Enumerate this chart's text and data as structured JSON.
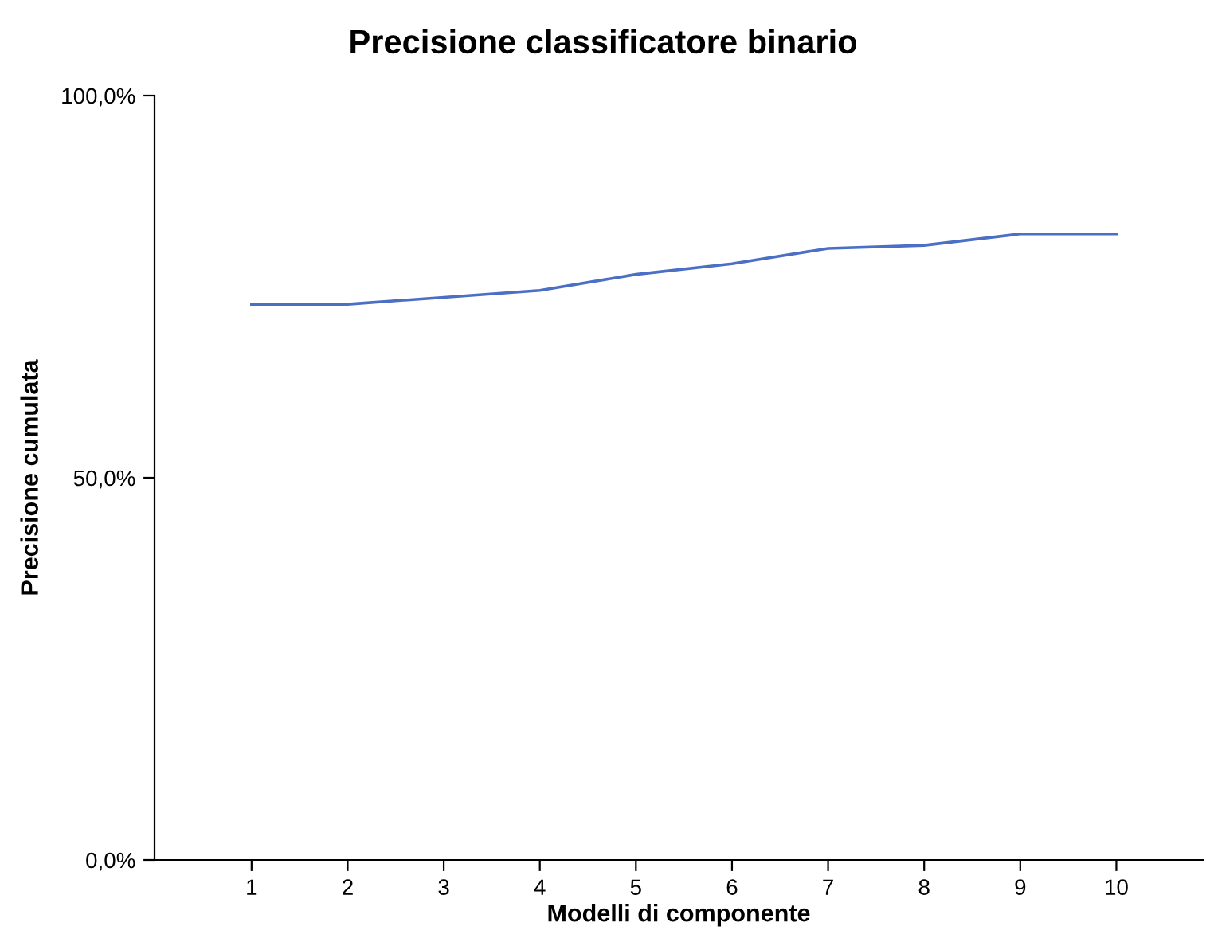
{
  "chart_data": {
    "type": "line",
    "title": "Precisione classificatore binario",
    "xlabel": "Modelli di componente",
    "ylabel": "Precisione cumulata",
    "categories": [
      "1",
      "2",
      "3",
      "4",
      "5",
      "6",
      "7",
      "8",
      "9",
      "10"
    ],
    "series": [
      {
        "color": "#4a6fc4",
        "values": [
          72.7,
          72.7,
          73.6,
          74.5,
          76.6,
          78.0,
          80.0,
          80.4,
          81.9,
          81.9
        ]
      }
    ],
    "ylim": [
      0,
      100
    ],
    "yticks": [
      {
        "value": 0,
        "label": "0,0%"
      },
      {
        "value": 50,
        "label": "50,0%"
      },
      {
        "value": 100,
        "label": "100,0%"
      }
    ],
    "grid": false,
    "legend": false,
    "marker": "none",
    "line_style": "solid"
  }
}
